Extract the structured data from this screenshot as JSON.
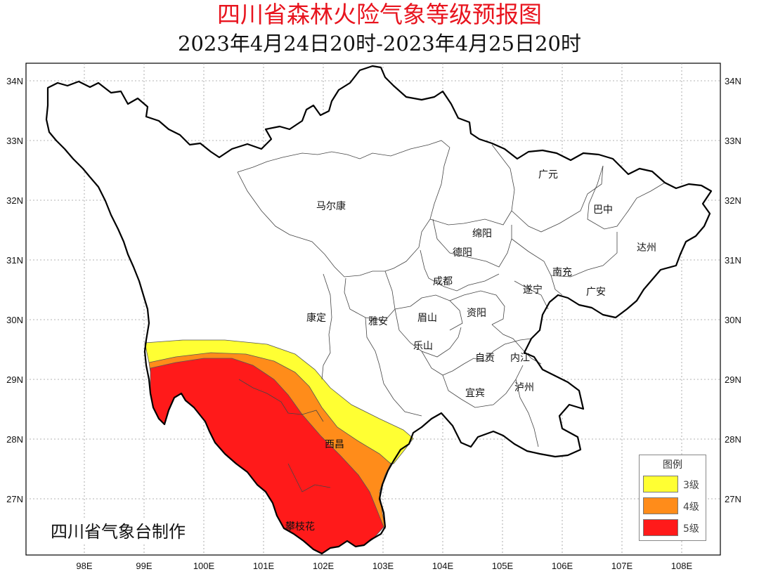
{
  "title": "四川省森林火险气象等级预报图",
  "subtitle": "2023年4月24日20时-2023年4月25日20时",
  "credit": "四川省气象台制作",
  "lat_ticks": [
    "34N",
    "33N",
    "32N",
    "31N",
    "30N",
    "29N",
    "28N",
    "27N"
  ],
  "lon_ticks": [
    "98E",
    "99E",
    "100E",
    "101E",
    "102E",
    "103E",
    "104E",
    "105E",
    "106E",
    "107E",
    "108E"
  ],
  "cities": [
    "广元",
    "马尔康",
    "巴中",
    "绵阳",
    "德阳",
    "达州",
    "南充",
    "成都",
    "遂宁",
    "广安",
    "康定",
    "雅安",
    "眉山",
    "资阳",
    "乐山",
    "自贡",
    "内江",
    "泸州",
    "宜宾",
    "西昌",
    "攀枝花"
  ],
  "legend": {
    "title": "图例",
    "items": [
      {
        "label": "3级",
        "color": "#ffff33"
      },
      {
        "label": "4级",
        "color": "#ff8c1a"
      },
      {
        "label": "5级",
        "color": "#ff1a1a"
      }
    ]
  },
  "colors": {
    "title": "#e8141e",
    "border": "#000000",
    "grid": "#999999"
  }
}
